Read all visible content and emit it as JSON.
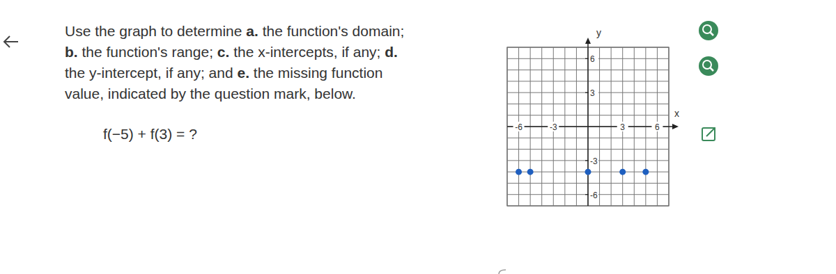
{
  "question": {
    "lines": [
      [
        {
          "text": "Use the graph to determine ",
          "bold": false
        },
        {
          "text": "a.",
          "bold": true
        },
        {
          "text": " the function's domain;",
          "bold": false
        }
      ],
      [
        {
          "text": "b.",
          "bold": true
        },
        {
          "text": " the function's range; ",
          "bold": false
        },
        {
          "text": "c.",
          "bold": true
        },
        {
          "text": " the x-intercepts, if any; ",
          "bold": false
        },
        {
          "text": "d.",
          "bold": true
        }
      ],
      [
        {
          "text": "the y-intercept, if any; and ",
          "bold": false
        },
        {
          "text": "e.",
          "bold": true
        },
        {
          "text": " the missing function",
          "bold": false
        }
      ],
      [
        {
          "text": "value, indicated by the question mark, below.",
          "bold": false
        }
      ]
    ],
    "expression": "f(−5) + f(3) = ?"
  },
  "chart_data": {
    "type": "scatter",
    "x": [
      -6,
      -5,
      0,
      3,
      5
    ],
    "values": [
      -4,
      -4,
      -4,
      -4,
      -4
    ],
    "xlim": [
      -7,
      7
    ],
    "ylim": [
      -7,
      7
    ],
    "xticks": [
      -6,
      -3,
      3,
      6
    ],
    "yticks": [
      -6,
      -3,
      3,
      6
    ],
    "x_label": "x",
    "y_label": "y",
    "grid": true,
    "color": "#1f5fbf",
    "marker": "circle"
  }
}
